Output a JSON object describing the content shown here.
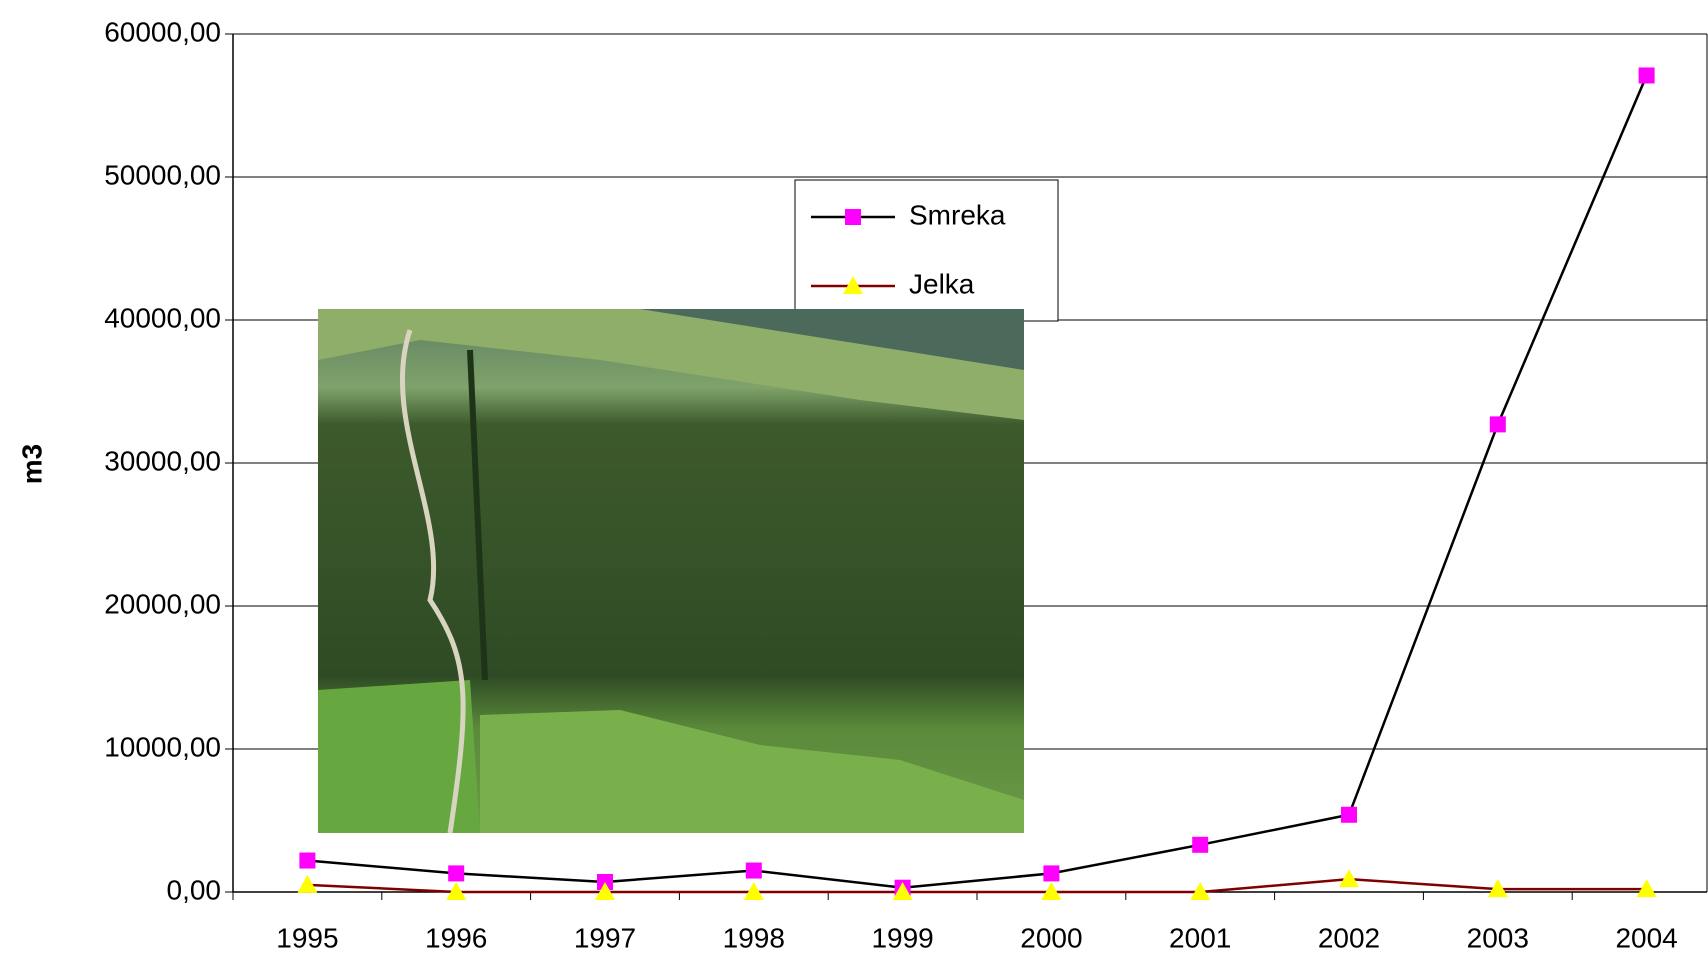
{
  "chart_data": {
    "type": "line",
    "y_label": "m3",
    "categories": [
      "1995",
      "1996",
      "1997",
      "1998",
      "1999",
      "2000",
      "2001",
      "2002",
      "2003",
      "2004"
    ],
    "series": [
      {
        "name": "Smreka",
        "color": "#000000",
        "marker_color": "#ff00ff",
        "marker": "square",
        "values": [
          2200,
          1300,
          700,
          1500,
          300,
          1300,
          3300,
          5400,
          32700,
          57100
        ]
      },
      {
        "name": "Jelka",
        "color": "#800000",
        "marker_color": "#ffff00",
        "marker": "triangle",
        "values": [
          500,
          0,
          0,
          0,
          0,
          0,
          0,
          900,
          200,
          200
        ]
      }
    ],
    "ylim": [
      0,
      60000
    ],
    "yticks": [
      {
        "value": 0,
        "label": "0,00"
      },
      {
        "value": 10000,
        "label": "10000,00"
      },
      {
        "value": 20000,
        "label": "20000,00"
      },
      {
        "value": 30000,
        "label": "30000,00"
      },
      {
        "value": 40000,
        "label": "40000,00"
      },
      {
        "value": 50000,
        "label": "50000,00"
      },
      {
        "value": 60000,
        "label": "60000,00"
      }
    ],
    "grid": true
  }
}
